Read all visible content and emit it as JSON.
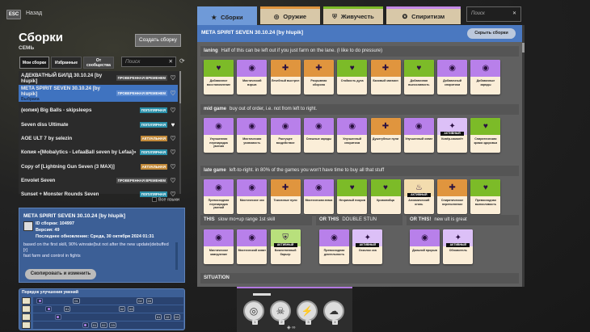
{
  "header": {
    "esc_label": "ESC",
    "back_label": "Назад"
  },
  "left": {
    "title": "Сборки",
    "hero": "СЕМЬ",
    "create_button": "Создать сборку",
    "tabs": [
      "Мои сборки",
      "Избранные",
      "От сообщества"
    ],
    "search_placeholder": "Поиск",
    "builds": [
      {
        "name": "АДЕКВАТНЫЙ БИЛД 30.10.24 [by hlupik]",
        "badge": "ПРОВЕРЕННАЯ ВРЕМЕНЕМ",
        "badge_type": "time",
        "favorite": false
      },
      {
        "name": "META SPIRIT SEVEN 30.10.24 [by hlupik]",
        "sub": "Выбрана",
        "badge": "ПРОВЕРЕННАЯ ВРЕМЕНЕМ",
        "badge_type": "time",
        "favorite": false,
        "selected": true
      },
      {
        "name": "(копия) Big Balls - skipsleeps",
        "badge": "ПОПУЛЯРНАЯ",
        "badge_type": "popular",
        "favorite": false
      },
      {
        "name": "Seven diss Ultimate",
        "badge": "ПОПУЛЯРНАЯ",
        "badge_type": "popular",
        "favorite": true
      },
      {
        "name": "AOE ULT 7 by selezin",
        "badge": "АКТУАЛЬНАЯ",
        "badge_type": "actual",
        "favorite": false
      },
      {
        "name": "Копия «[Mobalytics - LefaaBall seven by Lefaa]»",
        "badge": "ПОПУЛЯРНАЯ",
        "badge_type": "popular",
        "favorite": false
      },
      {
        "name": "Copy of [Lightning Gun Seven (3 MAX)]",
        "badge": "АКТУАЛЬНАЯ",
        "badge_type": "actual",
        "favorite": false
      },
      {
        "name": "Envolet Seven",
        "badge": "ПРОВЕРЕННАЯ ВРЕМЕНЕМ",
        "badge_type": "time",
        "favorite": false
      },
      {
        "name": "Sunset + Monster Rounds Seven",
        "badge": "ПОПУЛЯРНАЯ",
        "badge_type": "popular",
        "favorite": false
      }
    ],
    "all_languages": "Все языки",
    "detail": {
      "title": "META SPIRIT SEVEN 30.10.24 [by hlupik]",
      "id": "ID сборки: 104997",
      "version": "Версия: 49",
      "updated": "Последнее обновление: Среда, 30 октября 2024 01:31",
      "description": "based on the first skill, 90% winrate(but not after the new update)debuffed [r]\nfast farm and control in fights",
      "copy_button": "Скопировать и изменить"
    },
    "skill_order": {
      "title": "Порядок улучшения умений",
      "rows": [
        [
          {
            "step": 0,
            "label": ""
          },
          {
            "step": 4,
            "label": "01"
          },
          {
            "step": 11,
            "label": "02"
          },
          {
            "step": 12,
            "label": "03"
          }
        ],
        [
          {
            "step": 1,
            "label": ""
          },
          {
            "step": 3,
            "label": "01"
          },
          {
            "step": 9,
            "label": "02"
          },
          {
            "step": 10,
            "label": "03"
          }
        ],
        [
          {
            "step": 2,
            "label": ""
          },
          {
            "step": 13,
            "label": "01"
          },
          {
            "step": 14,
            "label": "02"
          },
          {
            "step": 15,
            "label": "03"
          }
        ],
        [
          {
            "step": 5,
            "label": ""
          },
          {
            "step": 6,
            "label": "01"
          },
          {
            "step": 7,
            "label": "02"
          },
          {
            "step": 8,
            "label": "03"
          }
        ]
      ]
    }
  },
  "right": {
    "tabs": [
      {
        "label": "Сборки",
        "icon": "star-icon",
        "color": "#6f9ad8",
        "active": true
      },
      {
        "label": "Оружие",
        "icon": "weapon-icon",
        "color": "#e0953e"
      },
      {
        "label": "Живучесть",
        "icon": "vitality-icon",
        "color": "#7cbb28"
      },
      {
        "label": "Спиритизм",
        "icon": "spirit-icon",
        "color": "#c58ae8"
      }
    ],
    "search_placeholder": "Поиск",
    "build_title": "META SPIRIT SEVEN 30.10.24 [by hlupik]",
    "hide_button": "Скрыть сборки",
    "active_label": "АКТИВНЫЙ",
    "colors": {
      "green": "#7cbb28",
      "purple": "#b880ea",
      "orange": "#e0953e",
      "lpurple": "#dcc0f7",
      "lgreen": "#b8e07c",
      "lorange": "#f3dcae"
    },
    "sections": [
      {
        "title": "laning",
        "note": "Half of this can be left out if you just farm on the lane. (I like to do pressure)",
        "items": [
          {
            "name": "Добавочное восстановление",
            "c": "green"
          },
          {
            "name": "Мистический взрыв",
            "c": "purple"
          },
          {
            "name": "Лечебный выстрел",
            "c": "orange"
          },
          {
            "name": "Разрывная оборона",
            "c": "orange"
          },
          {
            "name": "Стойкость духа",
            "c": "green"
          },
          {
            "name": "Базовый магазин",
            "c": "orange"
          },
          {
            "name": "Добавочная выносливость",
            "c": "green"
          },
          {
            "name": "Добавочный спиритизм",
            "c": "purple"
          },
          {
            "name": "Добавочные заряды",
            "c": "purple"
          }
        ]
      },
      {
        "title": "mid game",
        "note": "buy out of order, i.e. not from left to right.",
        "items": [
          {
            "name": "Улучшенная перезарядка умения",
            "c": "purple"
          },
          {
            "name": "Мистическая уязвимость",
            "c": "purple"
          },
          {
            "name": "Растущее воздействие",
            "c": "purple"
          },
          {
            "name": "Спешные заряды",
            "c": "purple"
          },
          {
            "name": "Улучшенный спиритизм",
            "c": "purple"
          },
          {
            "name": "Душегубные пули",
            "c": "orange"
          },
          {
            "name": "Улучшенный охват",
            "c": "purple"
          },
          {
            "name": "Ковёр-самолёт",
            "c": "lpurple",
            "active": true
          },
          {
            "name": "Спиритическая кража здоровья",
            "c": "green"
          }
        ]
      },
      {
        "title": "late game",
        "note": "left-to-right. in 80% of the games you won't have time to buy all that stuff",
        "items": [
          {
            "name": "Превосходная перезарядка умений",
            "c": "purple"
          },
          {
            "name": "Мистическое эхо",
            "c": "purple"
          },
          {
            "name": "Токсичные пули",
            "c": "orange"
          },
          {
            "name": "Мистическая атака",
            "c": "purple"
          },
          {
            "name": "Незримый покров",
            "c": "green"
          },
          {
            "name": "Кровопийца",
            "c": "green"
          },
          {
            "name": "Алхимический огонь",
            "c": "lorange",
            "active": true
          },
          {
            "name": "Спиритическое переполнение",
            "c": "orange"
          },
          {
            "name": "Превосходная выносливость",
            "c": "green"
          }
        ]
      }
    ],
    "choices": [
      {
        "title": "THIS",
        "note": "slow mo+up range 1st skill",
        "items": [
          {
            "name": "Мистическое замедление",
            "c": "purple"
          },
          {
            "name": "Мистический охват",
            "c": "purple"
          },
          {
            "name": "Божественный барьер",
            "c": "lgreen",
            "active": true
          }
        ]
      },
      {
        "title": "OR THIS",
        "note": "DOUBLE STUN",
        "items": [
          {
            "name": "Превосходная длительность",
            "c": "purple"
          },
          {
            "name": "Осколок эха",
            "c": "lpurple",
            "active": true
          }
        ]
      },
      {
        "title": "OR THIS!",
        "note": "new ult is great",
        "items": [
          {
            "name": "Дальний прорыв",
            "c": "purple"
          },
          {
            "name": "Обновитель",
            "c": "lpurple",
            "active": true
          }
        ]
      }
    ],
    "situation_title": "SITUATION"
  },
  "abilities": [
    {
      "icon": "lightning-ball-icon",
      "level": "1"
    },
    {
      "icon": "skull-crossbones-icon",
      "level": "2"
    },
    {
      "icon": "static-charge-icon",
      "level": "3"
    },
    {
      "icon": "storm-cloud-icon",
      "level": "4"
    }
  ]
}
